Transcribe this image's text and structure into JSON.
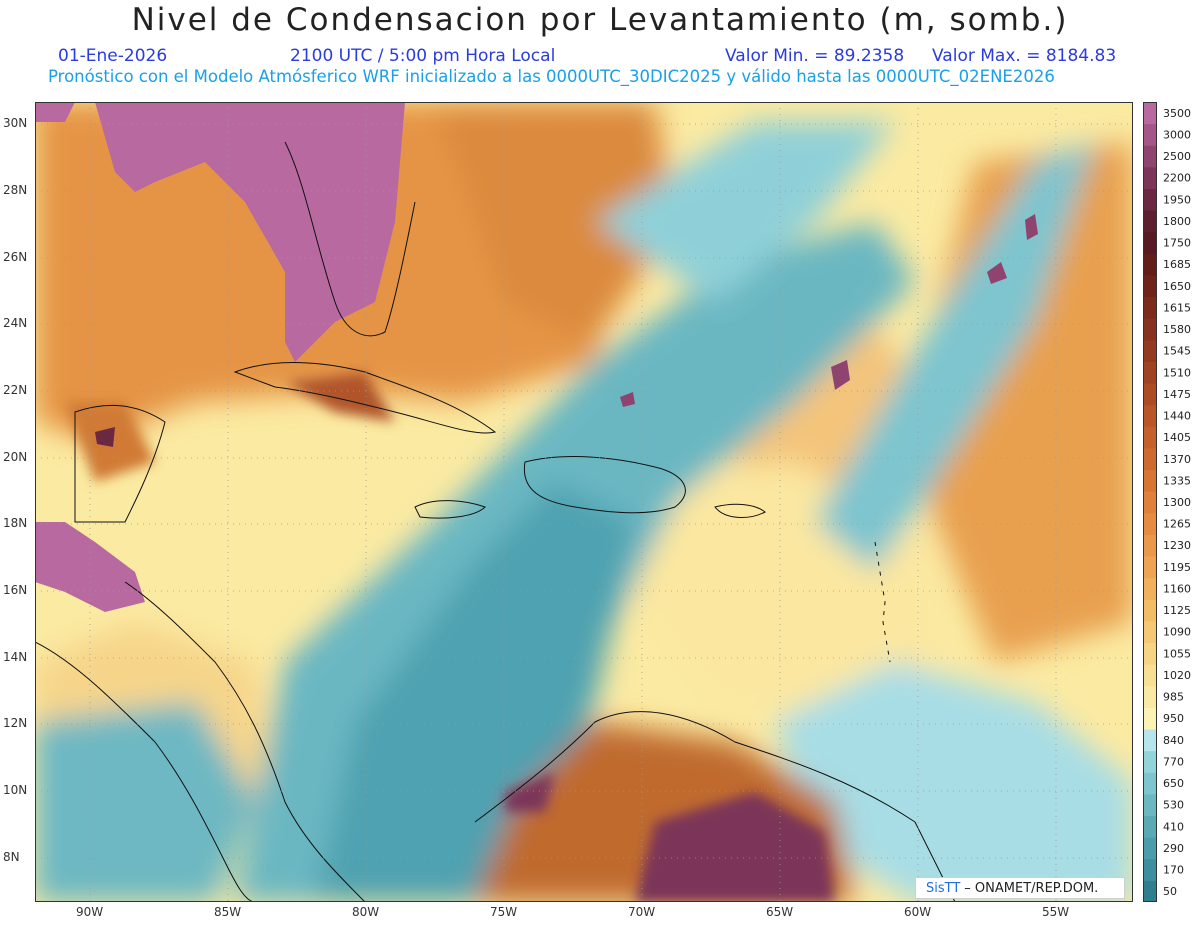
{
  "title": "Nivel de Condensacion por Levantamiento (m, somb.)",
  "date": "01-Ene-2026",
  "time": "2100 UTC / 5:00 pm Hora Local",
  "min_label": "Valor Min. = 89.2358",
  "max_label": "Valor Max. = 8184.83",
  "forecast_note": "Pronóstico con el Modelo Atmósferico WRF inicializado a las 0000UTC_30DIC2025 y válido hasta las  0000UTC_02ENE2026",
  "credit": {
    "brand": "SisTT",
    "text": "– ONAMET/REP.DOM."
  },
  "lon_labels": [
    "90W",
    "85W",
    "80W",
    "75W",
    "70W",
    "65W",
    "60W",
    "55W"
  ],
  "lat_labels": [
    "30N",
    "28N",
    "26N",
    "24N",
    "22N",
    "20N",
    "18N",
    "16N",
    "14N",
    "12N",
    "10N",
    "8N"
  ],
  "colorbar": {
    "levels": [
      "50",
      "170",
      "290",
      "410",
      "530",
      "650",
      "770",
      "840",
      "950",
      "985",
      "1020",
      "1055",
      "1090",
      "1125",
      "1160",
      "1195",
      "1230",
      "1265",
      "1300",
      "1335",
      "1370",
      "1405",
      "1440",
      "1475",
      "1510",
      "1545",
      "1580",
      "1615",
      "1650",
      "1685",
      "1750",
      "1800",
      "1950",
      "2200",
      "2500",
      "3000",
      "3500"
    ],
    "colors": [
      "#2f7f8f",
      "#3d8f9f",
      "#4c9dab",
      "#5aaab6",
      "#6bb7c2",
      "#7ec5cf",
      "#93d3da",
      "#b6e6ec",
      "#fbf2b6",
      "#fae9a4",
      "#f8df93",
      "#f7d483",
      "#f5c874",
      "#f3bc66",
      "#f1b05b",
      "#eea452",
      "#ea984a",
      "#e58c42",
      "#df803b",
      "#d77535",
      "#ce6a30",
      "#c3602c",
      "#b85628",
      "#ac4c25",
      "#a04322",
      "#943a20",
      "#87321e",
      "#7b2a1c",
      "#6f231b",
      "#631d1b",
      "#571a22",
      "#5c1f30",
      "#6a2843",
      "#7c3458",
      "#8f446f",
      "#a55687",
      "#b86aa0"
    ]
  },
  "map_regions": {
    "land_purple": "#b86aa0",
    "dark_purple": "#7c3458",
    "orange": "#e5913f",
    "yellow": "#fbeaa2",
    "teal": "#6bb7c2",
    "light_teal": "#a8dde5"
  }
}
